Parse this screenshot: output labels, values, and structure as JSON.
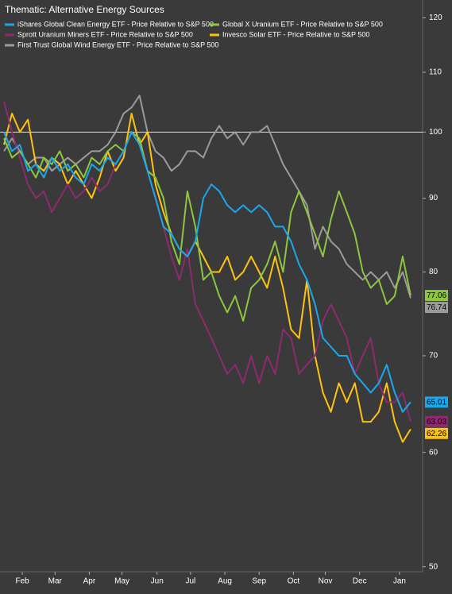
{
  "chart_data": {
    "type": "line",
    "title": "Thematic: Alternative Energy Sources",
    "log_scale": true,
    "ylim": [
      49.6,
      122.2
    ],
    "yticks": [
      50,
      60,
      70,
      80,
      90,
      100,
      110,
      120
    ],
    "xlim": [
      -0.5,
      52.5
    ],
    "xticks": [
      {
        "value": 2.3,
        "label": "Feb"
      },
      {
        "value": 6.4,
        "label": "Mar"
      },
      {
        "value": 10.7,
        "label": "Apr"
      },
      {
        "value": 14.8,
        "label": "May"
      },
      {
        "value": 19.2,
        "label": "Jun"
      },
      {
        "value": 23.4,
        "label": "Jul"
      },
      {
        "value": 27.7,
        "label": "Aug"
      },
      {
        "value": 32,
        "label": "Sep"
      },
      {
        "value": 36.3,
        "label": "Oct"
      },
      {
        "value": 40.3,
        "label": "Nov"
      },
      {
        "value": 44.6,
        "label": "Dec"
      },
      {
        "value": 49.6,
        "label": "Jan"
      }
    ],
    "hline": 100,
    "grid": false,
    "legend": "top-left",
    "x": [
      0,
      1,
      2,
      3,
      4,
      5,
      6,
      7,
      8,
      9,
      10,
      11,
      12,
      13,
      14,
      15,
      16,
      17,
      18,
      19,
      20,
      21,
      22,
      23,
      24,
      25,
      26,
      27,
      28,
      29,
      30,
      31,
      32,
      33,
      34,
      35,
      36,
      37,
      38,
      39,
      40,
      41,
      42,
      43,
      44,
      45,
      46,
      47,
      48,
      49,
      50,
      51
    ],
    "series": [
      {
        "name": "iShares Global Clean Energy ETF - Price Relative to S&P 500",
        "color": "#1aa7ec",
        "values": [
          100,
          97,
          98,
          94,
          95,
          93,
          96,
          94,
          95,
          93,
          92,
          95,
          94,
          96,
          95,
          97,
          100,
          98,
          94,
          90,
          86,
          85,
          83,
          82,
          84,
          90,
          92,
          91,
          89,
          88,
          89,
          88,
          89,
          88,
          86,
          86,
          84,
          81,
          79,
          76,
          72,
          71,
          70,
          70,
          68,
          67,
          66,
          67,
          69,
          66,
          64,
          65.01
        ]
      },
      {
        "name": "Global X Uranium ETF - Price Relative to S&P 500",
        "color": "#8dc63f",
        "values": [
          99,
          96,
          97,
          95,
          93,
          96,
          95,
          97,
          94,
          95,
          93,
          96,
          95,
          97,
          98,
          97,
          100,
          99,
          94,
          93,
          90,
          84,
          81,
          91,
          86,
          79,
          80,
          77,
          75,
          77,
          74,
          78,
          79,
          81,
          84,
          80,
          88,
          91,
          88,
          85,
          82,
          87,
          91,
          88,
          85,
          80,
          78,
          79,
          76,
          77,
          82,
          77.06
        ]
      },
      {
        "name": "Sprott Uranium Miners ETF - Price Relative to S&P 500",
        "color": "#8e2a6e",
        "values": [
          105,
          100,
          96,
          92,
          90,
          91,
          88,
          90,
          92,
          90,
          91,
          93,
          91,
          92,
          95,
          97,
          100,
          98,
          94,
          90,
          86,
          82,
          79,
          83,
          76,
          74,
          72,
          70,
          68,
          69,
          67,
          70,
          67,
          70,
          68,
          73,
          72,
          68,
          69,
          70,
          74,
          76,
          74,
          72,
          68,
          70,
          72,
          67,
          65,
          65,
          66,
          63.03
        ]
      },
      {
        "name": "Invesco Solar ETF - Price Relative to S&P 500",
        "color": "#ffc20e",
        "values": [
          98,
          103,
          100,
          102,
          95,
          94,
          96,
          95,
          92,
          94,
          92,
          90,
          93,
          97,
          94,
          96,
          103,
          98,
          100,
          92,
          88,
          85,
          83,
          82,
          84,
          82,
          80,
          80,
          82,
          79,
          80,
          82,
          80,
          78,
          82,
          78,
          73,
          72,
          79,
          70,
          66,
          64,
          67,
          65,
          67,
          63,
          63,
          64,
          67,
          63,
          61,
          62.26
        ]
      },
      {
        "name": "First Trust Global Wind Energy ETF - Price Relative to S&P 500",
        "color": "#9b9b9b",
        "values": [
          97,
          99,
          97,
          95,
          96,
          96,
          94,
          95,
          96,
          95,
          96,
          97,
          97,
          98,
          100,
          103,
          104,
          106,
          100,
          97,
          96,
          94,
          95,
          97,
          97,
          96,
          99,
          101,
          99,
          100,
          98,
          100,
          100,
          101,
          98,
          95,
          93,
          91,
          89,
          83,
          86,
          84,
          83,
          81,
          80,
          79,
          80,
          79,
          80,
          78,
          80,
          76.74
        ]
      }
    ]
  }
}
